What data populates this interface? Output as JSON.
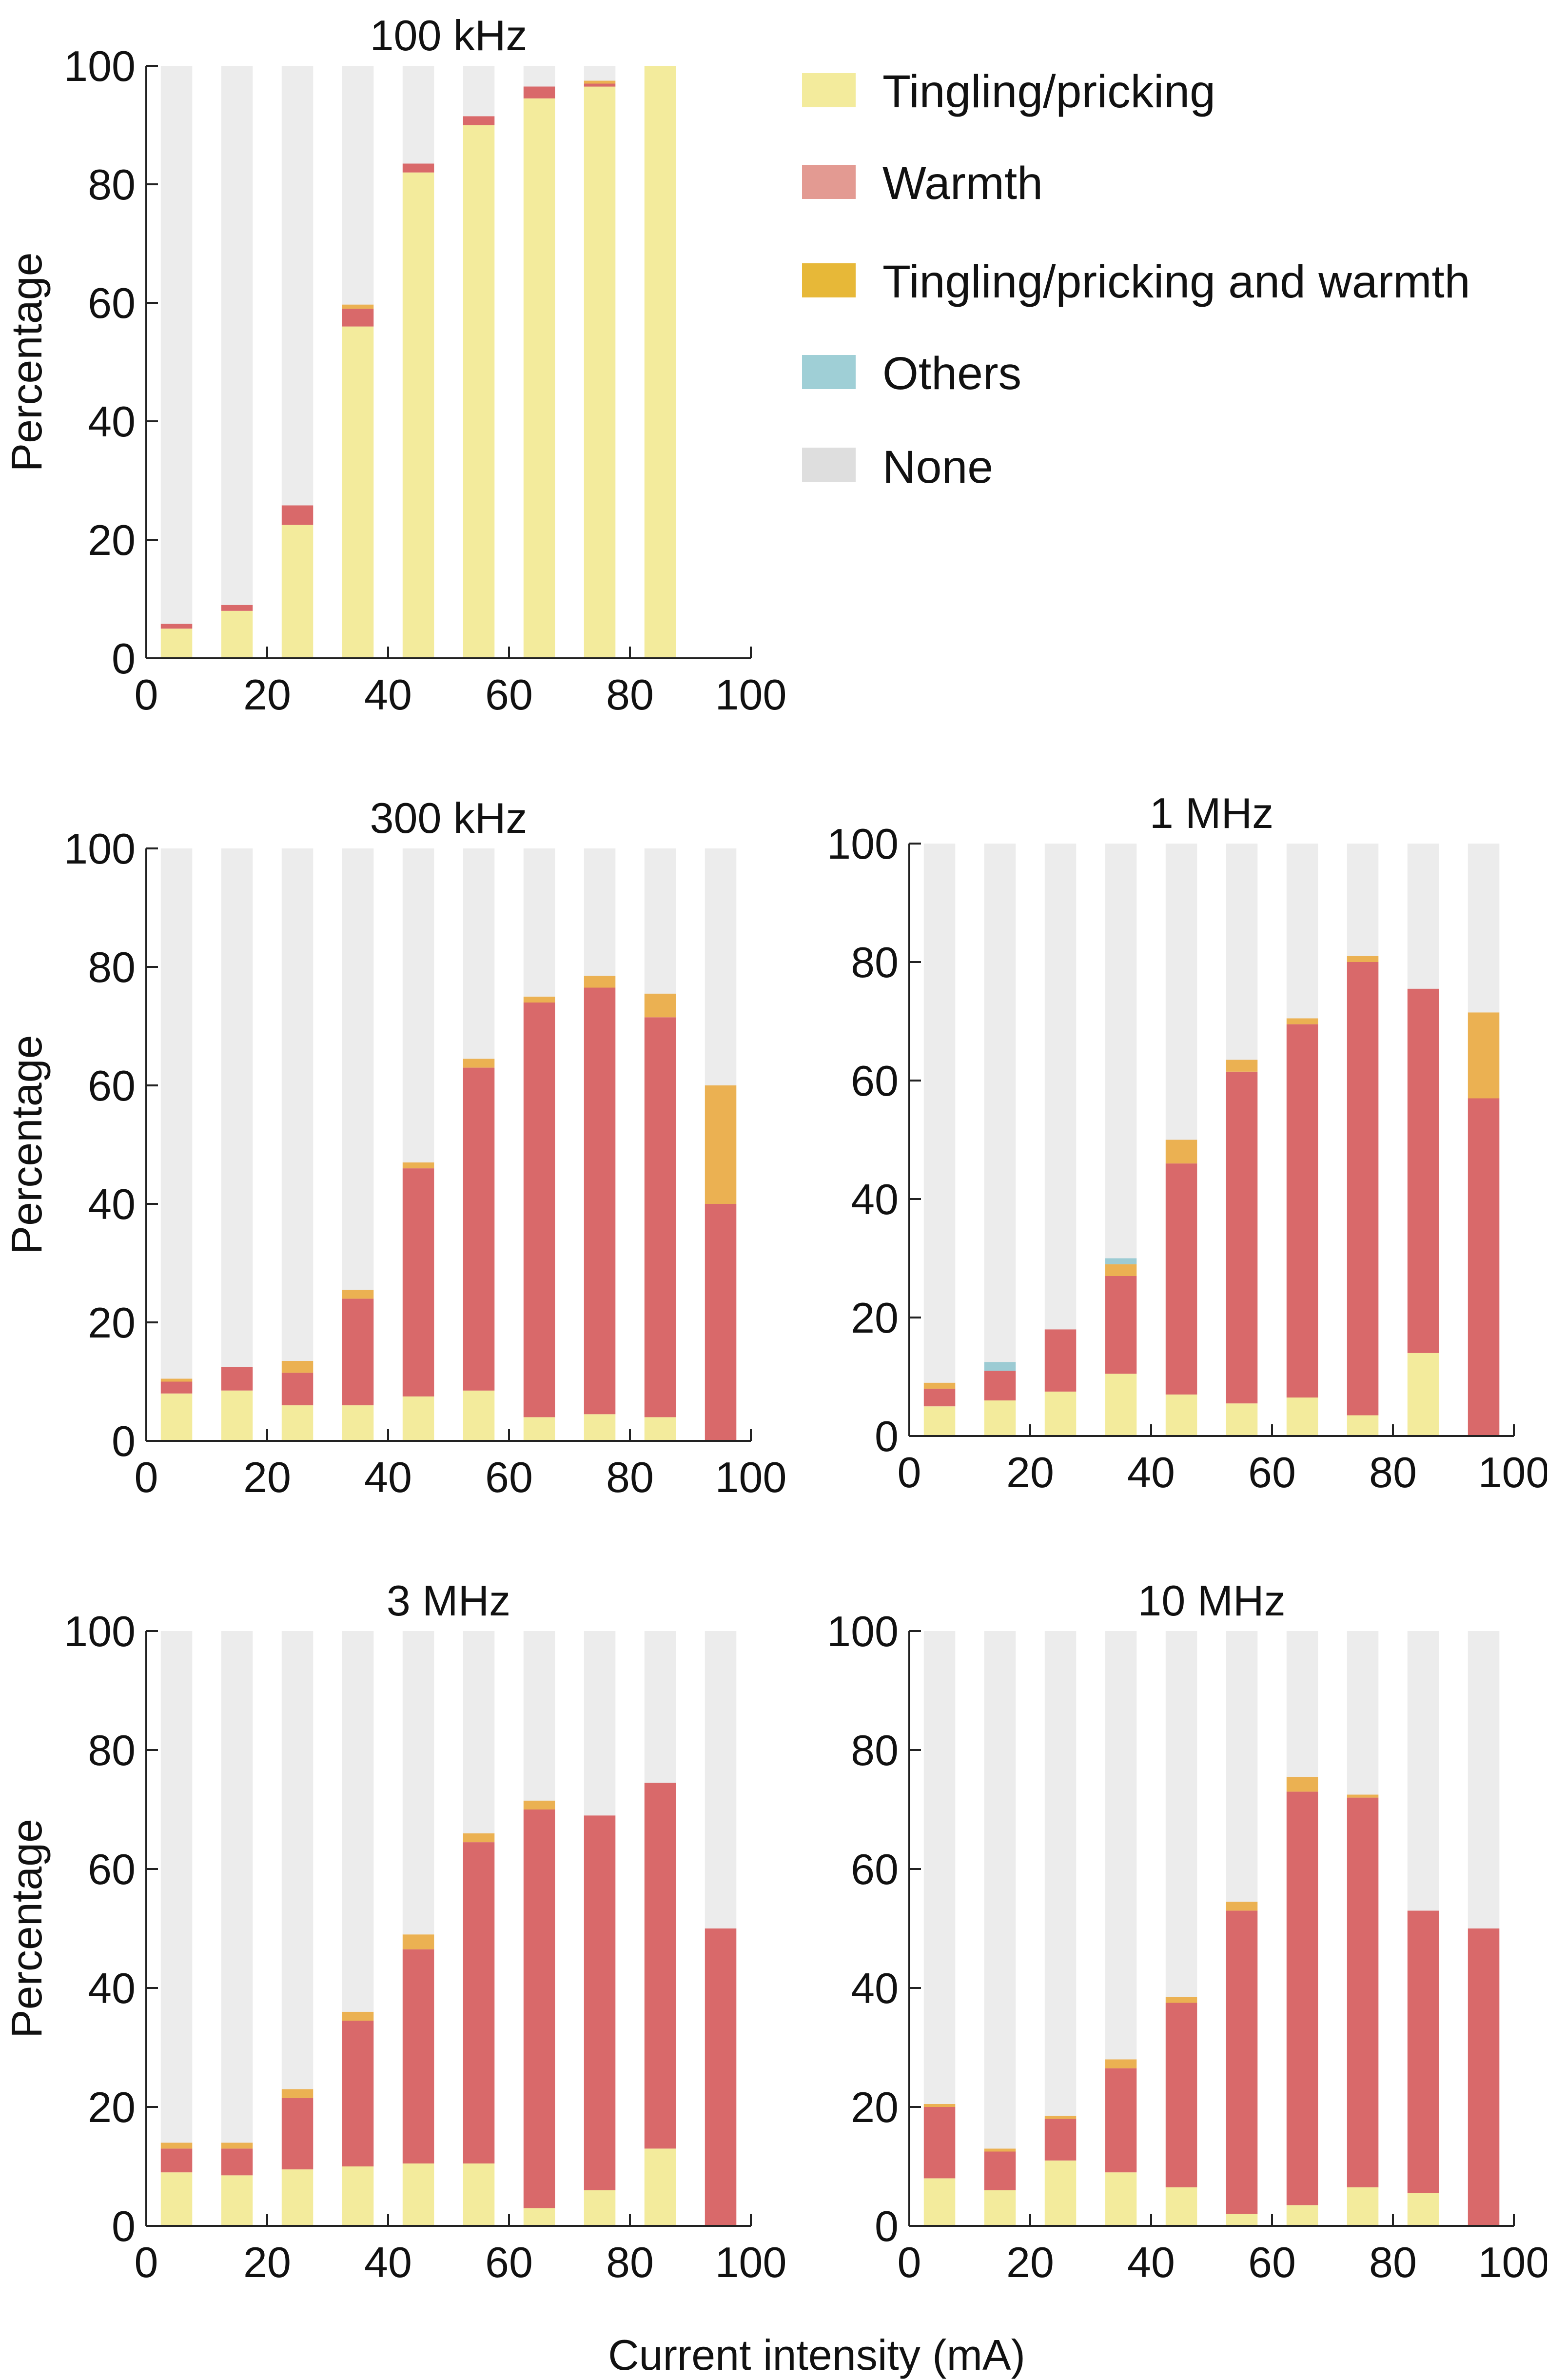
{
  "figure": {
    "shared_xlabel": "Current intensity (mA)"
  },
  "legend": {
    "items": [
      {
        "key": "tingling",
        "label": "Tingling/pricking",
        "color": "#f3eb9c"
      },
      {
        "key": "warmth",
        "label": "Warmth",
        "color": "#e39a92"
      },
      {
        "key": "both",
        "label": "Tingling/pricking and warmth",
        "color": "#e7b838"
      },
      {
        "key": "others",
        "label": "Others",
        "color": "#9fcfd6"
      },
      {
        "key": "none",
        "label": "None",
        "color": "#dedede"
      }
    ]
  },
  "colors": {
    "tingling": "#f3eb9c",
    "warmth": "#d9696a",
    "both": "#ebb152",
    "others": "#9ccbd3",
    "none": "#ececec"
  },
  "chart_data": [
    {
      "type": "bar",
      "stacked": true,
      "title": "100 kHz",
      "xlabel": "",
      "ylabel": "Percentage",
      "xlim": [
        0,
        100
      ],
      "ylim": [
        0,
        100
      ],
      "xticks": [
        "0",
        "20",
        "40",
        "60",
        "80",
        "100"
      ],
      "yticks": [
        "0",
        "20",
        "40",
        "60",
        "80",
        "100"
      ],
      "x": [
        5,
        15,
        25,
        35,
        45,
        55,
        65,
        75,
        85
      ],
      "series": [
        {
          "name": "Tingling/pricking",
          "key": "tingling",
          "values": [
            5,
            8,
            22.5,
            56,
            82,
            90,
            94.5,
            96.5,
            100
          ]
        },
        {
          "name": "Warmth",
          "key": "warmth",
          "values": [
            0.8,
            1,
            3.3,
            3,
            1.5,
            1.5,
            2,
            0.5,
            0
          ]
        },
        {
          "name": "Tingling/pricking and warmth",
          "key": "both",
          "values": [
            0,
            0,
            0,
            0.7,
            0,
            0,
            0,
            0.5,
            0
          ]
        },
        {
          "name": "Others",
          "key": "others",
          "values": [
            0,
            0,
            0,
            0,
            0,
            0,
            0,
            0,
            0
          ]
        },
        {
          "name": "None",
          "key": "none",
          "values": [
            94.2,
            91,
            74.2,
            40.3,
            16.5,
            8.5,
            3.5,
            2.5,
            0
          ]
        }
      ]
    },
    {
      "type": "bar",
      "stacked": true,
      "title": "300 kHz",
      "xlabel": "",
      "ylabel": "Percentage",
      "xlim": [
        0,
        100
      ],
      "ylim": [
        0,
        100
      ],
      "xticks": [
        "0",
        "20",
        "40",
        "60",
        "80",
        "100"
      ],
      "yticks": [
        "0",
        "20",
        "40",
        "60",
        "80",
        "100"
      ],
      "x": [
        5,
        15,
        25,
        35,
        45,
        55,
        65,
        75,
        85,
        95
      ],
      "series": [
        {
          "name": "Tingling/pricking",
          "key": "tingling",
          "values": [
            8,
            8.5,
            6,
            6,
            7.5,
            8.5,
            4,
            4.5,
            4,
            0
          ]
        },
        {
          "name": "Warmth",
          "key": "warmth",
          "values": [
            2,
            4,
            5.5,
            18,
            38.5,
            54.5,
            70,
            72,
            67.5,
            40
          ]
        },
        {
          "name": "Tingling/pricking and warmth",
          "key": "both",
          "values": [
            0.5,
            0,
            2,
            1.5,
            1,
            1.5,
            1,
            2,
            4,
            20
          ]
        },
        {
          "name": "Others",
          "key": "others",
          "values": [
            0,
            0,
            0,
            0,
            0,
            0,
            0,
            0,
            0,
            0
          ]
        },
        {
          "name": "None",
          "key": "none",
          "values": [
            89.5,
            87.5,
            86.5,
            74.5,
            53,
            35.5,
            25,
            21.5,
            24.5,
            40
          ]
        }
      ]
    },
    {
      "type": "bar",
      "stacked": true,
      "title": "1 MHz",
      "xlabel": "",
      "ylabel": "",
      "xlim": [
        0,
        100
      ],
      "ylim": [
        0,
        100
      ],
      "xticks": [
        "0",
        "20",
        "40",
        "60",
        "80",
        "100"
      ],
      "yticks": [
        "0",
        "20",
        "40",
        "60",
        "80",
        "100"
      ],
      "x": [
        5,
        15,
        25,
        35,
        45,
        55,
        65,
        75,
        85,
        95
      ],
      "series": [
        {
          "name": "Tingling/pricking",
          "key": "tingling",
          "values": [
            5,
            6,
            7.5,
            10.5,
            7,
            5.5,
            6.5,
            3.5,
            14,
            0
          ]
        },
        {
          "name": "Warmth",
          "key": "warmth",
          "values": [
            3,
            5,
            10.5,
            16.5,
            39,
            56,
            63,
            76.5,
            61.5,
            57
          ]
        },
        {
          "name": "Tingling/pricking and warmth",
          "key": "both",
          "values": [
            1,
            0,
            0,
            2,
            4,
            2,
            1,
            1,
            0,
            14.5
          ]
        },
        {
          "name": "Others",
          "key": "others",
          "values": [
            0,
            1.5,
            0,
            1,
            0,
            0,
            0,
            0,
            0,
            0
          ]
        },
        {
          "name": "None",
          "key": "none",
          "values": [
            91,
            87.5,
            82,
            70,
            50,
            36.5,
            29.5,
            19,
            24.5,
            28.5
          ]
        }
      ]
    },
    {
      "type": "bar",
      "stacked": true,
      "title": "3 MHz",
      "xlabel": "",
      "ylabel": "Percentage",
      "xlim": [
        0,
        100
      ],
      "ylim": [
        0,
        100
      ],
      "xticks": [
        "0",
        "20",
        "40",
        "60",
        "80",
        "100"
      ],
      "yticks": [
        "0",
        "20",
        "40",
        "60",
        "80",
        "100"
      ],
      "x": [
        5,
        15,
        25,
        35,
        45,
        55,
        65,
        75,
        85,
        95
      ],
      "series": [
        {
          "name": "Tingling/pricking",
          "key": "tingling",
          "values": [
            9,
            8.5,
            9.5,
            10,
            10.5,
            10.5,
            3,
            6,
            13,
            0
          ]
        },
        {
          "name": "Warmth",
          "key": "warmth",
          "values": [
            4,
            4.5,
            12,
            24.5,
            36,
            54,
            67,
            63,
            61.5,
            50
          ]
        },
        {
          "name": "Tingling/pricking and warmth",
          "key": "both",
          "values": [
            1,
            1,
            1.5,
            1.5,
            2.5,
            1.5,
            1.5,
            0,
            0,
            0
          ]
        },
        {
          "name": "Others",
          "key": "others",
          "values": [
            0,
            0,
            0,
            0,
            0,
            0,
            0,
            0,
            0,
            0
          ]
        },
        {
          "name": "None",
          "key": "none",
          "values": [
            86,
            86,
            77,
            64,
            51,
            34,
            28.5,
            31,
            25.5,
            50
          ]
        }
      ]
    },
    {
      "type": "bar",
      "stacked": true,
      "title": "10 MHz",
      "xlabel": "",
      "ylabel": "",
      "xlim": [
        0,
        100
      ],
      "ylim": [
        0,
        100
      ],
      "xticks": [
        "0",
        "20",
        "40",
        "60",
        "80",
        "100"
      ],
      "yticks": [
        "0",
        "20",
        "40",
        "60",
        "80",
        "100"
      ],
      "x": [
        5,
        15,
        25,
        35,
        45,
        55,
        65,
        75,
        85,
        95
      ],
      "series": [
        {
          "name": "Tingling/pricking",
          "key": "tingling",
          "values": [
            8,
            6,
            11,
            9,
            6.5,
            2,
            3.5,
            6.5,
            5.5,
            0
          ]
        },
        {
          "name": "Warmth",
          "key": "warmth",
          "values": [
            12,
            6.5,
            7,
            17.5,
            31,
            51,
            69.5,
            65.5,
            47.5,
            50
          ]
        },
        {
          "name": "Tingling/pricking and warmth",
          "key": "both",
          "values": [
            0.5,
            0.5,
            0.5,
            1.5,
            1,
            1.5,
            2.5,
            0.5,
            0,
            0
          ]
        },
        {
          "name": "Others",
          "key": "others",
          "values": [
            0,
            0,
            0,
            0,
            0,
            0,
            0,
            0,
            0,
            0
          ]
        },
        {
          "name": "None",
          "key": "none",
          "values": [
            79.5,
            87,
            81.5,
            72,
            61.5,
            45.5,
            24.5,
            27.5,
            47,
            50
          ]
        }
      ]
    }
  ]
}
